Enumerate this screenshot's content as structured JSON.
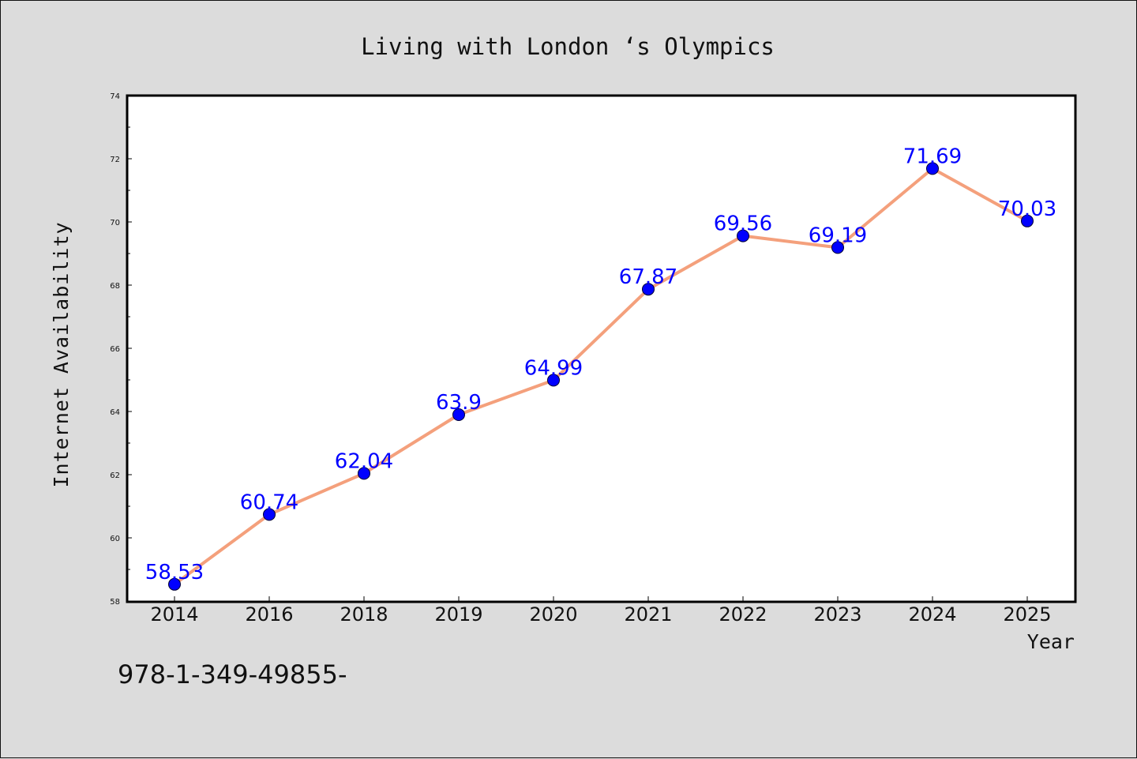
{
  "chart_data": {
    "type": "line",
    "title": "Living with London ‘s Olympics",
    "xlabel": "Year",
    "ylabel": "Internet Availability",
    "categories": [
      "2014",
      "2016",
      "2018",
      "2019",
      "2020",
      "2021",
      "2022",
      "2023",
      "2024",
      "2025"
    ],
    "series": [
      {
        "values": [
          58.53,
          60.74,
          62.04,
          63.9,
          64.99,
          67.87,
          69.56,
          69.19,
          71.69,
          70.03
        ],
        "labels": [
          "58.53",
          "60.74",
          "62.04",
          "63.9",
          "64.99",
          "67.87",
          "69.56",
          "69.19",
          "71.69",
          "70.03"
        ],
        "line_color": "#f4a07c",
        "marker_color": "#0000ff"
      }
    ],
    "ylim": [
      58,
      74
    ],
    "yticks": [
      "58",
      "60",
      "62",
      "64",
      "66",
      "68",
      "70",
      "72",
      "74"
    ],
    "grid": false,
    "legend": "none"
  },
  "footer": "978-1-349-49855-"
}
